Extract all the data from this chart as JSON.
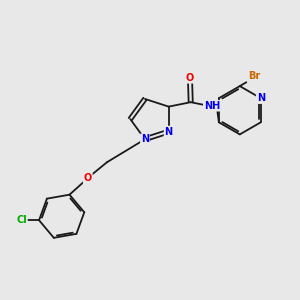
{
  "bg_color": "#e8e8e8",
  "bond_color": "#1a1a1a",
  "atom_colors": {
    "N": "#0000ee",
    "O": "#ee0000",
    "Cl": "#00aa00",
    "Br": "#cc6600",
    "C": "#1a1a1a",
    "H": "#1a1a1a"
  },
  "font_size": 7.0,
  "bond_width": 1.3,
  "figsize": [
    3.0,
    3.0
  ],
  "dpi": 100
}
